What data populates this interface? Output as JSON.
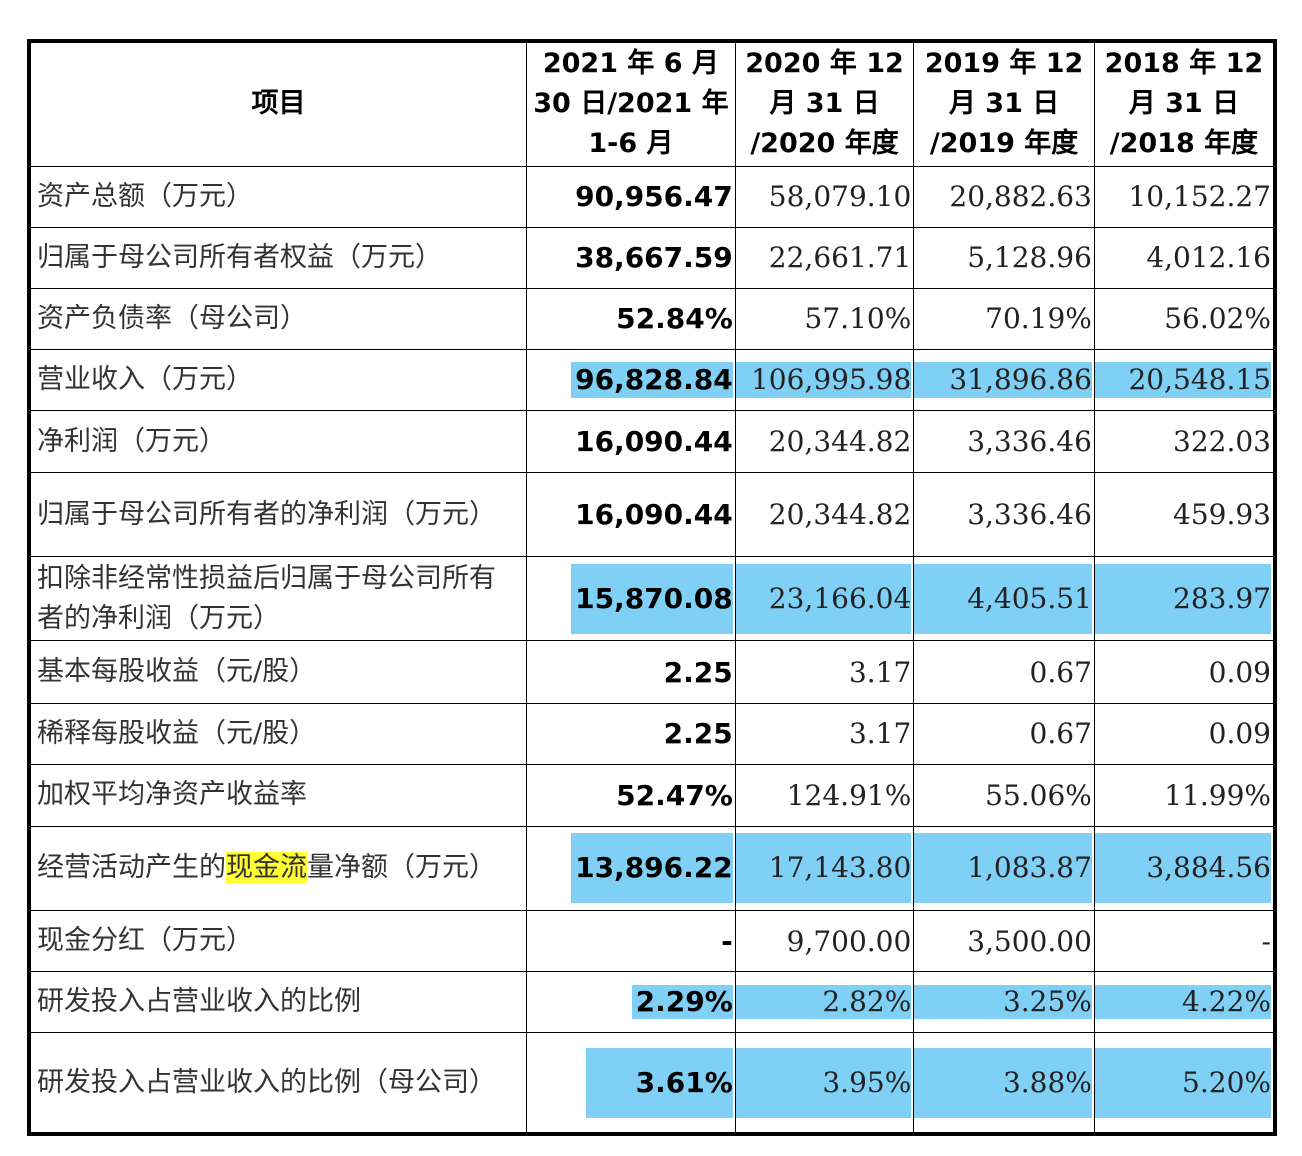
{
  "header": {
    "item": "项目",
    "col1": [
      "2021 年 6 月",
      "30 日/2021 年",
      "1-6 月"
    ],
    "col2": [
      "2020 年 12",
      "月 31 日",
      "/2020 年度"
    ],
    "col3": [
      "2019 年 12",
      "月 31 日",
      "/2019 年度"
    ],
    "col4": [
      "2018 年 12",
      "月 31 日",
      "/2018 年度"
    ]
  },
  "rows": [
    {
      "label": "资产总额（万元）",
      "v1": "90,956.47",
      "v2": "58,079.10",
      "v3": "20,882.63",
      "v4": "10,152.27"
    },
    {
      "label": "归属于母公司所有者权益（万元）",
      "v1": "38,667.59",
      "v2": "22,661.71",
      "v3": "5,128.96",
      "v4": "4,012.16"
    },
    {
      "label": "资产负债率（母公司）",
      "v1": "52.84%",
      "v2": "57.10%",
      "v3": "70.19%",
      "v4": "56.02%"
    },
    {
      "label": "营业收入（万元）",
      "v1": "96,828.84",
      "v2": "106,995.98",
      "v3": "31,896.86",
      "v4": "20,548.15"
    },
    {
      "label": "净利润（万元）",
      "v1": "16,090.44",
      "v2": "20,344.82",
      "v3": "3,336.46",
      "v4": "322.03"
    },
    {
      "label": "归属于母公司所有者的净利润（万元）",
      "v1": "16,090.44",
      "v2": "20,344.82",
      "v3": "3,336.46",
      "v4": "459.93"
    },
    {
      "label": "扣除非经常性损益后归属于母公司所有者的净利润（万元）",
      "v1": "15,870.08",
      "v2": "23,166.04",
      "v3": "4,405.51",
      "v4": "283.97"
    },
    {
      "label": "基本每股收益（元/股）",
      "v1": "2.25",
      "v2": "3.17",
      "v3": "0.67",
      "v4": "0.09"
    },
    {
      "label": "稀释每股收益（元/股）",
      "v1": "2.25",
      "v2": "3.17",
      "v3": "0.67",
      "v4": "0.09"
    },
    {
      "label": "加权平均净资产收益率",
      "v1": "52.47%",
      "v2": "124.91%",
      "v3": "55.06%",
      "v4": "11.99%"
    },
    {
      "label_pre": "经营活动产生的",
      "label_hl": "现金流",
      "label_post": "量净额（万元）",
      "v1": "13,896.22",
      "v2": "17,143.80",
      "v3": "1,083.87",
      "v4": "3,884.56"
    },
    {
      "label": "现金分红（万元）",
      "v1": "-",
      "v2": "9,700.00",
      "v3": "3,500.00",
      "v4": "-"
    },
    {
      "label": "研发投入占营业收入的比例",
      "v1": "2.29%",
      "v2": "2.82%",
      "v3": "3.25%",
      "v4": "4.22%"
    },
    {
      "label": "研发投入占营业收入的比例（母公司）",
      "v1": "3.61%",
      "v2": "3.95%",
      "v3": "3.88%",
      "v4": "5.20%"
    }
  ],
  "colors": {
    "highlight_blue": "#80d0f6",
    "highlight_yellow": "#ffff33"
  }
}
